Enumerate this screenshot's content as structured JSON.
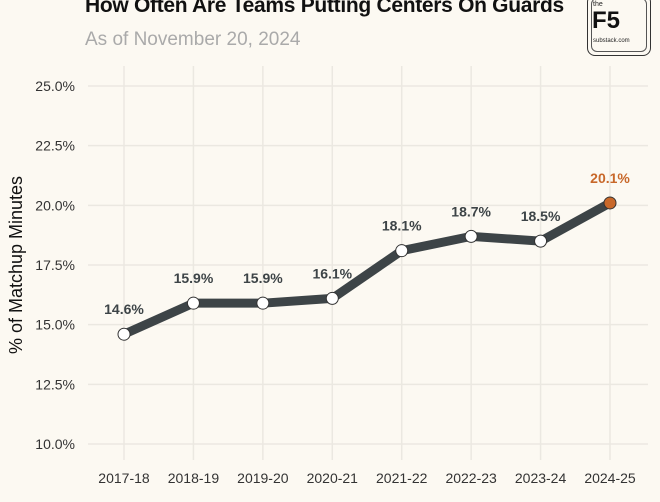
{
  "chart_data": {
    "type": "line",
    "title": "How Often Are Teams Putting Centers On Guards",
    "subtitle": "As of November 20, 2024",
    "xlabel": "",
    "ylabel": "% of Matchup Minutes",
    "categories": [
      "2017-18",
      "2018-19",
      "2019-20",
      "2020-21",
      "2021-22",
      "2022-23",
      "2023-24",
      "2024-25"
    ],
    "values": [
      14.6,
      15.9,
      15.9,
      16.1,
      18.1,
      18.7,
      18.5,
      20.1
    ],
    "data_labels": [
      "14.6%",
      "15.9%",
      "15.9%",
      "16.1%",
      "18.1%",
      "18.7%",
      "18.5%",
      "20.1%"
    ],
    "ylim": [
      10,
      25
    ],
    "yticks": [
      10,
      12.5,
      15,
      17.5,
      20,
      22.5,
      25
    ],
    "ytick_labels": [
      "10.0%",
      "12.5%",
      "15.0%",
      "17.5%",
      "20.0%",
      "22.5%",
      "25.0%"
    ],
    "grid": true,
    "highlight_index": 7,
    "colors": {
      "line": "#3d4447",
      "highlight": "#c8682a",
      "label": "#3d4447",
      "grid": "#ebe8e1"
    }
  },
  "logo": {
    "top": "the",
    "main": "F5",
    "bottom": "substack.com"
  }
}
